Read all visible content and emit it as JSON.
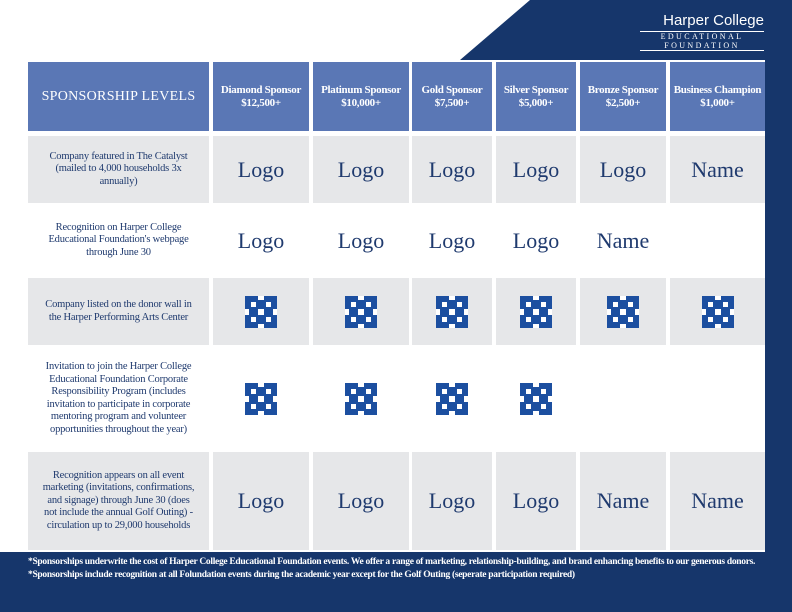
{
  "logo": {
    "name": "Harper College",
    "line1": "EDUCATIONAL",
    "line2": "FOUNDATION"
  },
  "table": {
    "corner": "SPONSORSHIP LEVELS",
    "columns": [
      {
        "name": "Diamond Sponsor",
        "amount": "$12,500+"
      },
      {
        "name": "Platinum Sponsor",
        "amount": "$10,000+"
      },
      {
        "name": "Gold Sponsor",
        "amount": "$7,500+"
      },
      {
        "name": "Silver Sponsor",
        "amount": "$5,000+"
      },
      {
        "name": "Bronze Sponsor",
        "amount": "$2,500+"
      },
      {
        "name": "Business Champion",
        "amount": "$1,000+"
      }
    ],
    "rows": [
      {
        "benefit": "Company featured in The Catalyst (mailed to 4,000 households 3x annually)",
        "cells": [
          "Logo",
          "Logo",
          "Logo",
          "Logo",
          "Logo",
          "Name"
        ]
      },
      {
        "benefit": "Recognition on Harper College Educational Foundation's webpage through June 30",
        "cells": [
          "Logo",
          "Logo",
          "Logo",
          "Logo",
          "Name"
        ]
      },
      {
        "benefit": "Company listed on the donor wall in the Harper Performing Arts Center"
      },
      {
        "benefit": "Invitation to join the Harper College Educational Foundation Corporate Responsibility Program (includes invitation to participate in corporate mentoring program and volunteer opportunities throughout the year)"
      },
      {
        "benefit": "Recognition appears on all event marketing (invitations, confirmations, and signage) through June 30 (does not include the annual Golf Outing) - circulation up to 29,000 households",
        "cells": [
          "Logo",
          "Logo",
          "Logo",
          "Logo",
          "Name",
          "Name"
        ]
      }
    ]
  },
  "footnotes": [
    "*Sponsorships underwrite the cost of Harper College Educational Foundation events. We offer a range of marketing, relationship-building, and brand enhancing benefits to our generous donors.",
    "*Sponsorships include recognition at all Folundation events during the academic year except for the Golf Outing (seperate participation required)"
  ]
}
